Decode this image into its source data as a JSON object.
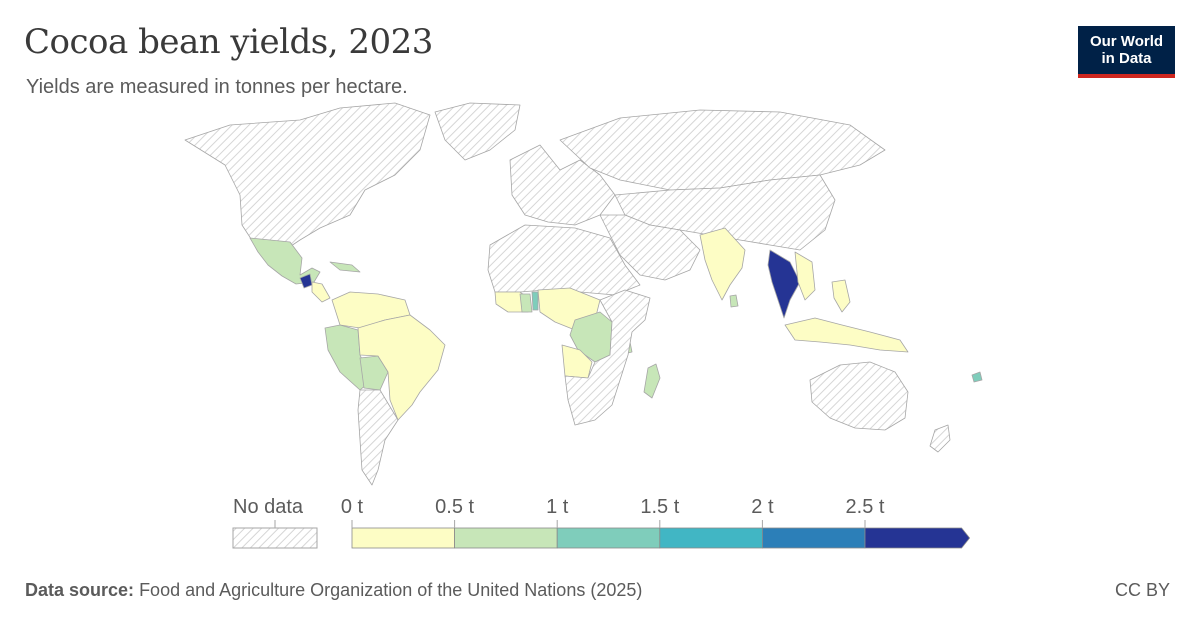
{
  "header": {
    "title": "Cocoa bean yields, 2023",
    "subtitle": "Yields are measured in tonnes per hectare."
  },
  "logo": {
    "line1": "Our World",
    "line2": "in Data"
  },
  "legend": {
    "no_data_label": "No data",
    "ticks": [
      "0 t",
      "0.5 t",
      "1 t",
      "1.5 t",
      "2 t",
      "2.5 t"
    ],
    "bins": [
      {
        "range": [
          0,
          0.5
        ],
        "color": "#fdfdc5"
      },
      {
        "range": [
          0.5,
          1
        ],
        "color": "#c7e6b8"
      },
      {
        "range": [
          1,
          1.5
        ],
        "color": "#7fcdbb"
      },
      {
        "range": [
          1.5,
          2
        ],
        "color": "#41b6c4"
      },
      {
        "range": [
          2,
          2.5
        ],
        "color": "#2c7fb8"
      },
      {
        "range": [
          2.5,
          null
        ],
        "color": "#253494"
      }
    ]
  },
  "colors": {
    "no_data_hatch": "#d6d6d6",
    "border": "#a6a6a6"
  },
  "footer": {
    "source_label": "Data source:",
    "source_text": "Food and Agriculture Organization of the United Nations (2025)",
    "license": "CC BY"
  }
}
